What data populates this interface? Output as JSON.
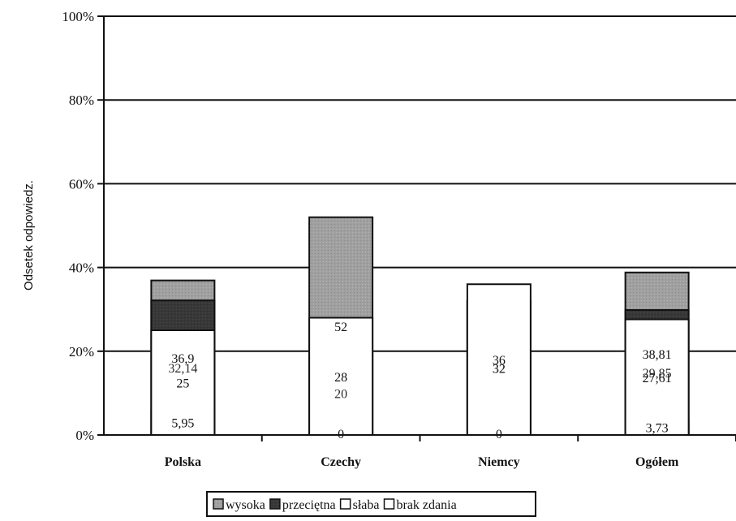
{
  "chart_data": {
    "type": "bar",
    "stacked": true,
    "percent": true,
    "ylabel": "Odsetek odpowiedz.",
    "xlabel": "",
    "ylim": [
      0,
      100
    ],
    "yticks": [
      "0%",
      "20%",
      "40%",
      "60%",
      "80%",
      "100%"
    ],
    "categories": [
      "Polska",
      "Czechy",
      "Niemcy",
      "Ogółem"
    ],
    "series": [
      {
        "name": "wysoka",
        "color": "#9a9a9a",
        "values": [
          36.9,
          52,
          32,
          38.81
        ],
        "labels": [
          "36,9",
          "52",
          "32",
          "38,81"
        ]
      },
      {
        "name": "przeciętna",
        "color": "#3a3a3a",
        "values": [
          32.14,
          20,
          32,
          29.85
        ],
        "labels": [
          "32,14",
          "20",
          "32",
          "29,85"
        ]
      },
      {
        "name": "słaba",
        "color": "#ffffff",
        "values": [
          5.95,
          0,
          0,
          3.73
        ],
        "labels": [
          "5,95",
          "0",
          "0",
          "3,73"
        ]
      },
      {
        "name": "brak zdania",
        "color": "#ffffff",
        "values": [
          25,
          28,
          36,
          27.61
        ],
        "labels": [
          "25",
          "28",
          "36",
          "27,61"
        ]
      }
    ],
    "legend_position": "bottom",
    "grid": true
  }
}
